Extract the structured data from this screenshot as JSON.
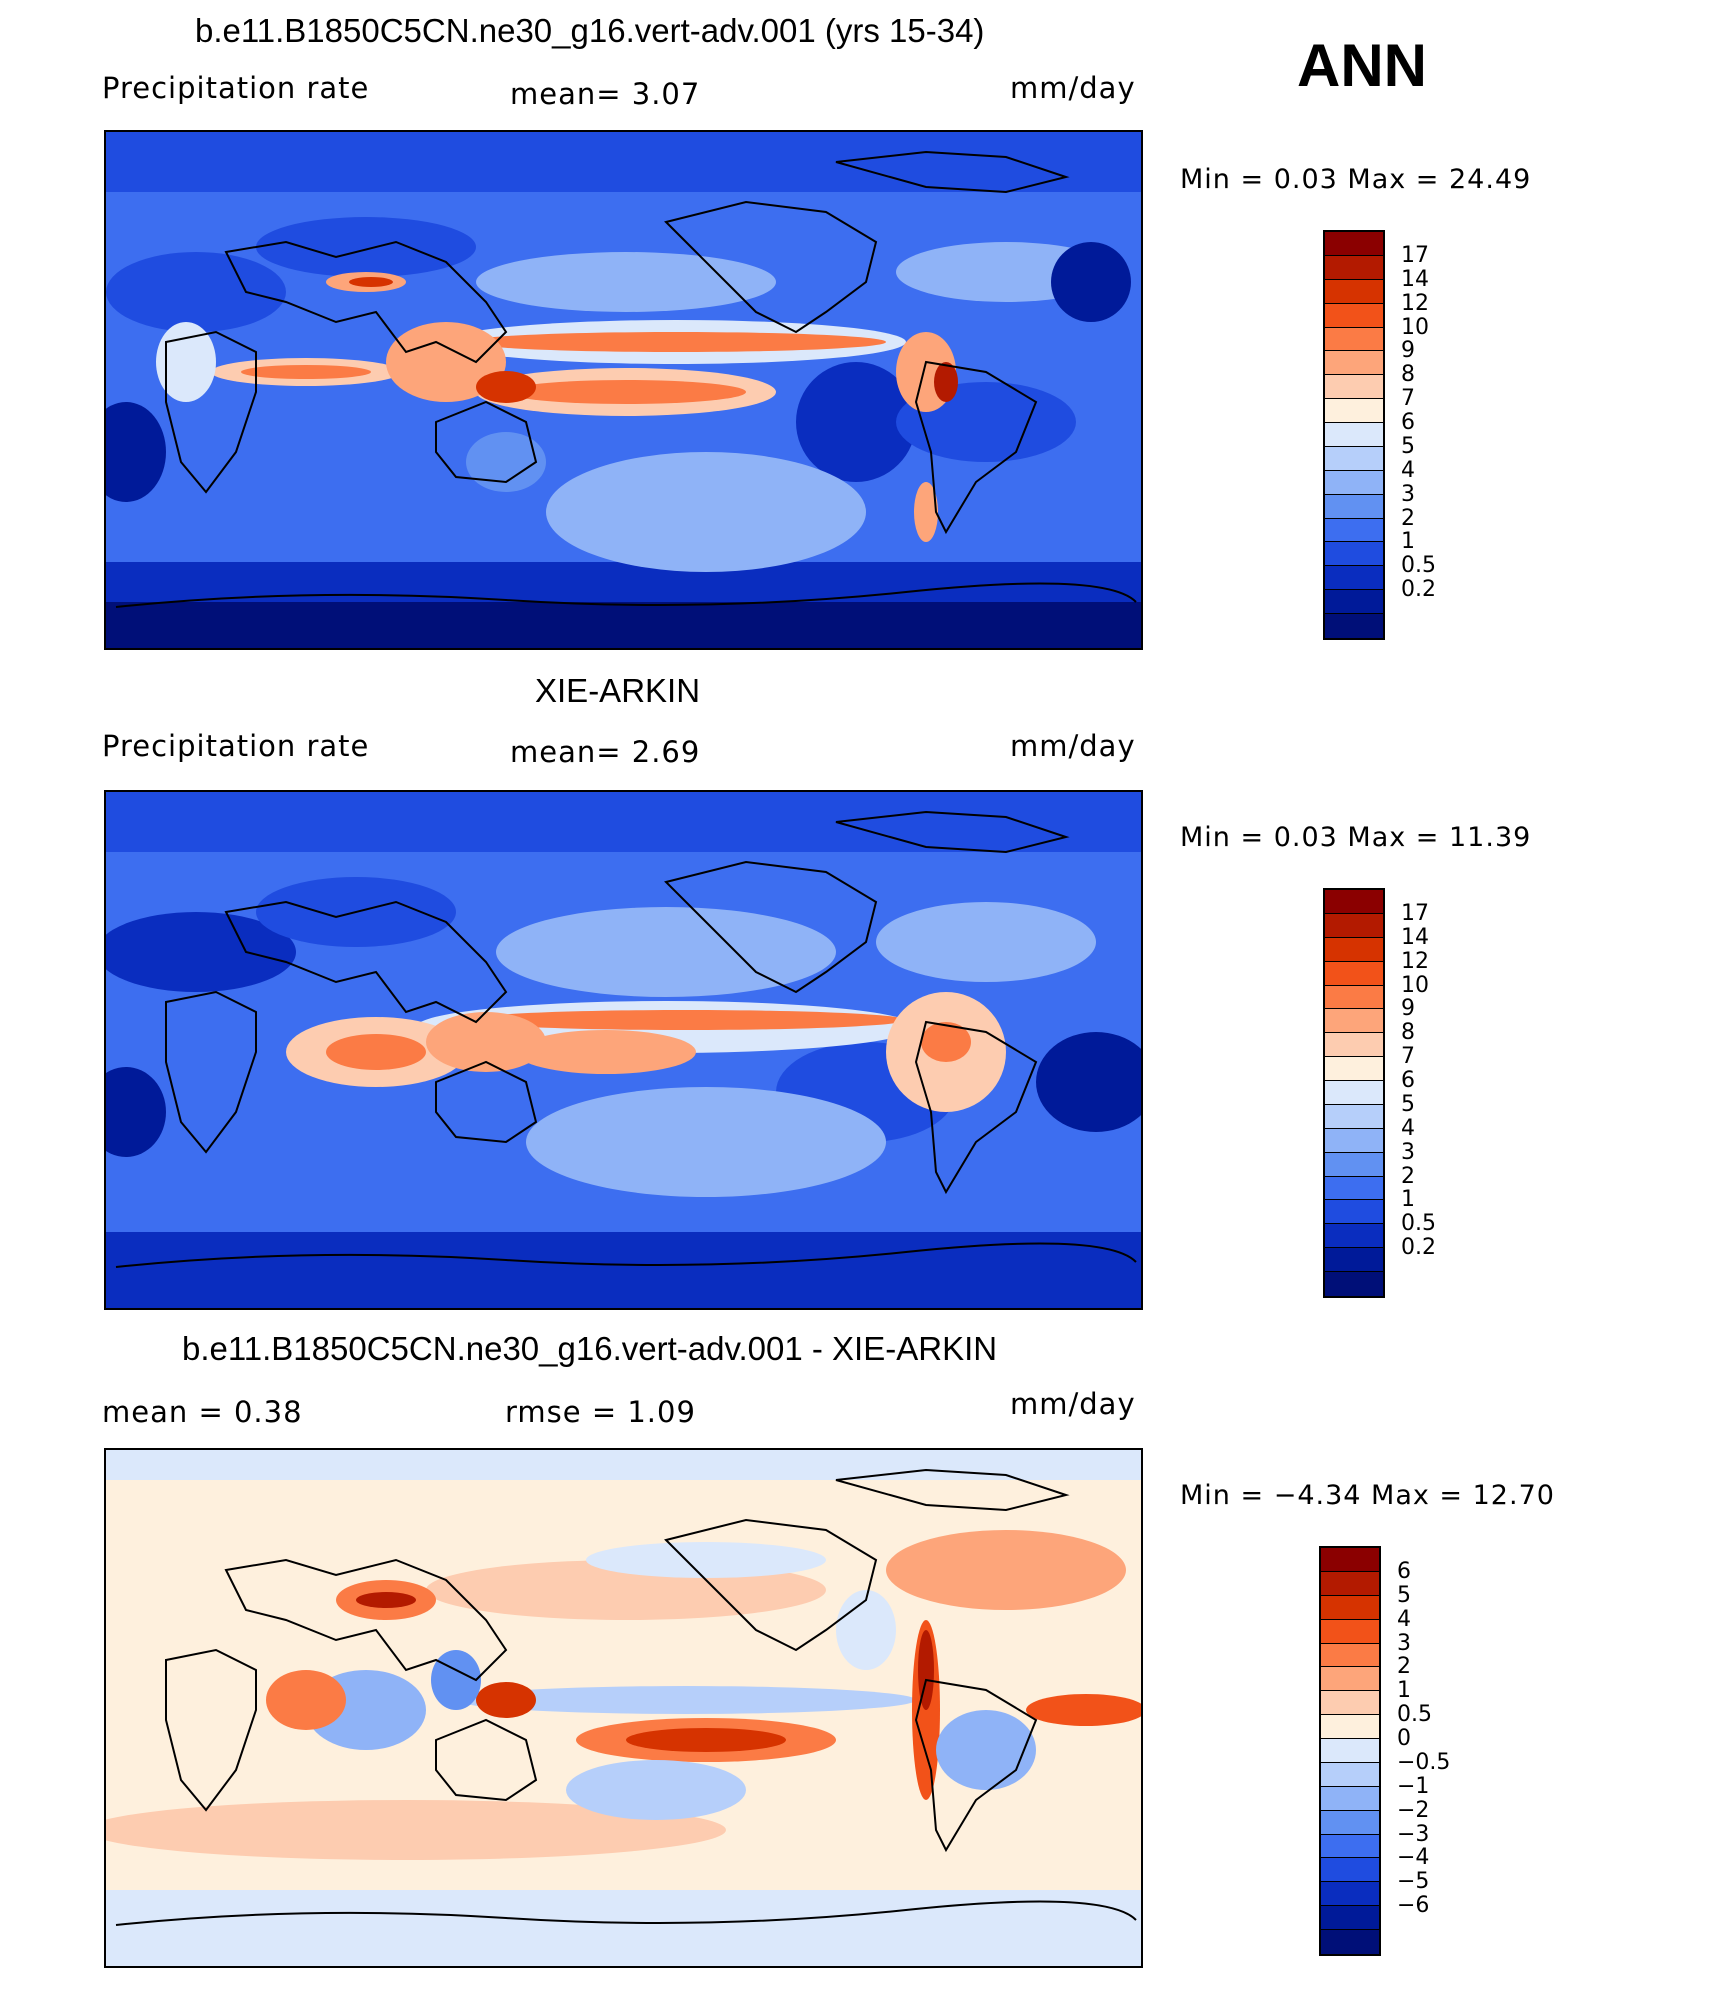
{
  "annotation": "ANN",
  "panels": [
    {
      "id": "model",
      "title": "b.e11.B1850C5CN.ne30_g16.vert-adv.001 (yrs 15-34)",
      "left_label": "Precipitation  rate",
      "center_label": "mean=    3.07",
      "units": "mm/day",
      "minmax": "Min  =      0.03  Max  =    24.49",
      "colorbar_labels": [
        "17",
        "14",
        "12",
        "10",
        "9",
        "8",
        "7",
        "6",
        "5",
        "4",
        "3",
        "2",
        "1",
        "0.5",
        "0.2"
      ],
      "colors": [
        "#8b0000",
        "#b31a00",
        "#d63300",
        "#f25219",
        "#fb7b45",
        "#fda57a",
        "#fdccb0",
        "#fef0dd",
        "#dbe8fb",
        "#b6cffa",
        "#8fb3f7",
        "#6191f2",
        "#3d6ef0",
        "#1f4ce0",
        "#0a2dbf",
        "#001a99",
        "#000f78"
      ],
      "map_fill": "#3366e6"
    },
    {
      "id": "obs",
      "title": "XIE-ARKIN",
      "left_label": "Precipitation  rate",
      "center_label": "mean=    2.69",
      "units": "mm/day",
      "minmax": "Min  =      0.03  Max  =    11.39",
      "colorbar_labels": [
        "17",
        "14",
        "12",
        "10",
        "9",
        "8",
        "7",
        "6",
        "5",
        "4",
        "3",
        "2",
        "1",
        "0.5",
        "0.2"
      ],
      "colors": [
        "#8b0000",
        "#b31a00",
        "#d63300",
        "#f25219",
        "#fb7b45",
        "#fda57a",
        "#fdccb0",
        "#fef0dd",
        "#dbe8fb",
        "#b6cffa",
        "#8fb3f7",
        "#6191f2",
        "#3d6ef0",
        "#1f4ce0",
        "#0a2dbf",
        "#001a99",
        "#000f78"
      ],
      "map_fill": "#2e5fe0"
    },
    {
      "id": "diff",
      "title": "b.e11.B1850C5CN.ne30_g16.vert-adv.001 - XIE-ARKIN",
      "left_label": "mean  =      0.38",
      "center_label": "rmse  =      1.09",
      "units": "mm/day",
      "minmax": "Min  =    −4.34  Max  =      12.70",
      "colorbar_labels": [
        "6",
        "5",
        "4",
        "3",
        "2",
        "1",
        "0.5",
        "0",
        "−0.5",
        "−1",
        "−2",
        "−3",
        "−4",
        "−5",
        "−6"
      ],
      "colors": [
        "#8b0000",
        "#b31a00",
        "#d63300",
        "#f25219",
        "#fb7b45",
        "#fda57a",
        "#fdccb0",
        "#fef0dd",
        "#dbe8fb",
        "#b6cffa",
        "#8fb3f7",
        "#6191f2",
        "#3d6ef0",
        "#1f4ce0",
        "#0a2dbf",
        "#001a99",
        "#000f78"
      ],
      "map_fill": "#fde3d0"
    }
  ]
}
